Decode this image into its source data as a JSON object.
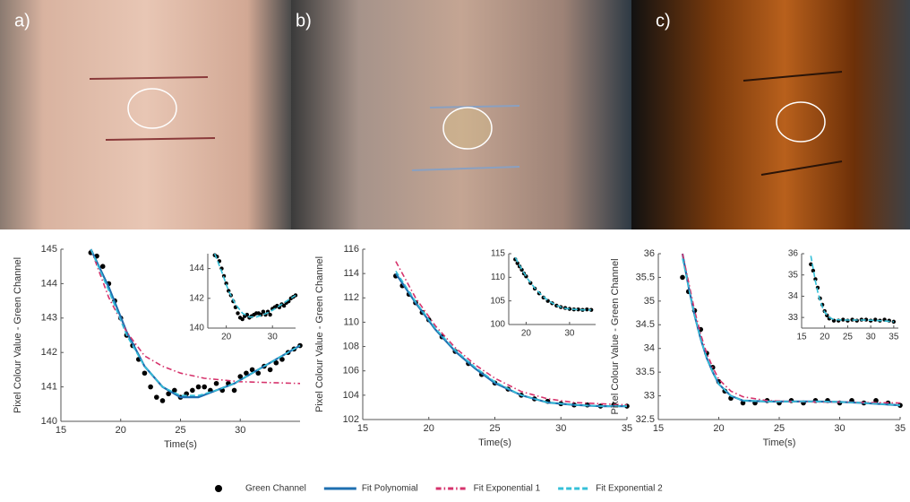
{
  "photos": [
    {
      "label": "a)"
    },
    {
      "label": "b)"
    },
    {
      "label": "c)"
    }
  ],
  "legend": [
    {
      "name": "Green Channel",
      "color": "#000000",
      "style": "markers"
    },
    {
      "name": "Fit Polynomial",
      "color": "#1f6fb0",
      "style": "solid"
    },
    {
      "name": "Fit Exponential 1",
      "color": "#d6336c",
      "style": "dashdot"
    },
    {
      "name": "Fit Exponential 2",
      "color": "#35c0d8",
      "style": "dashed"
    }
  ],
  "chart_data": [
    {
      "type": "scatter",
      "x_label": "Time(s)",
      "y_label": "Pixel Colour Value - Green Channel",
      "xlim": [
        15,
        35
      ],
      "ylim": [
        140,
        145
      ],
      "xticks": [
        15,
        20,
        25,
        30
      ],
      "yticks": [
        140,
        141,
        142,
        143,
        144,
        145
      ],
      "inset": {
        "xlim": [
          16,
          35
        ],
        "ylim": [
          140,
          145
        ],
        "xticks": [
          20,
          30
        ],
        "yticks": [
          140,
          142,
          144
        ]
      },
      "series": [
        {
          "color": "#000000",
          "style": "markers",
          "in_inset": true,
          "x": [
            17.5,
            18,
            18.5,
            19,
            19.5,
            20,
            20.5,
            21,
            21.5,
            22,
            22.5,
            23,
            23.5,
            24,
            24.5,
            25,
            25.5,
            26,
            26.5,
            27,
            27.5,
            28,
            28.5,
            29,
            29.5,
            30,
            30.5,
            31,
            31.5,
            32,
            32.5,
            33,
            33.5,
            34,
            34.5,
            35
          ],
          "values": [
            144.9,
            144.8,
            144.5,
            144,
            143.5,
            143,
            142.5,
            142.2,
            141.8,
            141.4,
            141,
            140.7,
            140.6,
            140.8,
            140.9,
            140.7,
            140.8,
            140.9,
            141,
            141,
            140.9,
            141.1,
            140.9,
            141.1,
            140.9,
            141.3,
            141.4,
            141.5,
            141.4,
            141.6,
            141.5,
            141.7,
            141.8,
            142,
            142.1,
            142.2
          ]
        },
        {
          "color": "#1f6fb0",
          "style": "solid",
          "in_inset": false,
          "x": [
            17.5,
            19,
            20.5,
            22,
            23.5,
            25,
            26.5,
            28,
            29.5,
            31,
            32.5,
            34,
            35
          ],
          "values": [
            145,
            143.9,
            142.6,
            141.6,
            141,
            140.7,
            140.7,
            140.9,
            141.1,
            141.4,
            141.7,
            142,
            142.2
          ]
        },
        {
          "color": "#d6336c",
          "style": "dashdot",
          "in_inset": false,
          "x": [
            17.5,
            19,
            20.5,
            22,
            23.5,
            25,
            27,
            30,
            35
          ],
          "values": [
            145,
            143.6,
            142.6,
            141.9,
            141.6,
            141.4,
            141.25,
            141.15,
            141.1
          ]
        },
        {
          "color": "#35c0d8",
          "style": "dashed",
          "in_inset": true,
          "x": [
            17.5,
            19,
            20.5,
            22,
            23.5,
            25,
            26.5,
            28,
            29.5,
            31,
            32.5,
            34,
            35
          ],
          "values": [
            145,
            143.8,
            142.5,
            141.6,
            141,
            140.75,
            140.75,
            140.9,
            141.1,
            141.4,
            141.7,
            142,
            142.2
          ]
        }
      ]
    },
    {
      "type": "scatter",
      "x_label": "Time(s)",
      "y_label": "Pixel Colour Value - Green Channel",
      "xlim": [
        15,
        35
      ],
      "ylim": [
        102,
        116
      ],
      "xticks": [
        15,
        20,
        25,
        30,
        35
      ],
      "yticks": [
        102,
        104,
        106,
        108,
        110,
        112,
        114,
        116
      ],
      "inset": {
        "xlim": [
          16,
          36
        ],
        "ylim": [
          100,
          115
        ],
        "xticks": [
          20,
          30
        ],
        "yticks": [
          100,
          105,
          110,
          115
        ]
      },
      "series": [
        {
          "color": "#000000",
          "style": "markers",
          "in_inset": true,
          "x": [
            17.5,
            18,
            18.5,
            19,
            19.5,
            20,
            21,
            22,
            23,
            24,
            25,
            26,
            27,
            28,
            29,
            30,
            31,
            32,
            33,
            34,
            35
          ],
          "values": [
            113.8,
            113,
            112.3,
            111.6,
            110.8,
            110.2,
            108.8,
            107.6,
            106.6,
            105.7,
            105,
            104.5,
            104,
            103.7,
            103.5,
            103.3,
            103.2,
            103.2,
            103.1,
            103.2,
            103.1
          ]
        },
        {
          "color": "#1f6fb0",
          "style": "solid",
          "in_inset": false,
          "x": [
            17.5,
            19,
            20.5,
            22,
            23.5,
            25,
            27,
            29,
            31,
            33,
            35
          ],
          "values": [
            114,
            111.6,
            109.4,
            107.6,
            106.2,
            105,
            104,
            103.4,
            103.2,
            103.1,
            103.1
          ]
        },
        {
          "color": "#d6336c",
          "style": "dashdot",
          "in_inset": false,
          "x": [
            17.5,
            19,
            20.5,
            22,
            23.5,
            25,
            27,
            29,
            31,
            33,
            35
          ],
          "values": [
            115,
            112,
            109.7,
            107.9,
            106.5,
            105.4,
            104.3,
            103.7,
            103.4,
            103.3,
            103.2
          ]
        },
        {
          "color": "#35c0d8",
          "style": "dashed",
          "in_inset": true,
          "x": [
            17.5,
            19,
            20.5,
            22,
            23.5,
            25,
            27,
            29,
            31,
            33,
            35
          ],
          "values": [
            114.2,
            111.7,
            109.5,
            107.7,
            106.3,
            105.1,
            104,
            103.4,
            103.2,
            103.1,
            103.1
          ]
        }
      ]
    },
    {
      "type": "scatter",
      "x_label": "Time(s)",
      "y_label": "Pixel Colour Value - Green Channel",
      "xlim": [
        15,
        35
      ],
      "ylim": [
        32.5,
        36
      ],
      "xticks": [
        15,
        20,
        25,
        30,
        35
      ],
      "yticks": [
        32.5,
        33,
        33.5,
        34,
        34.5,
        35,
        35.5,
        36
      ],
      "inset": {
        "xlim": [
          15,
          36
        ],
        "ylim": [
          32.5,
          36
        ],
        "xticks": [
          15,
          20,
          25,
          30,
          35
        ],
        "yticks": [
          33,
          34,
          35,
          36
        ]
      },
      "series": [
        {
          "color": "#000000",
          "style": "markers",
          "in_inset": true,
          "x": [
            17,
            17.5,
            18,
            18.5,
            19,
            19.5,
            20,
            20.5,
            21,
            22,
            23,
            24,
            25,
            26,
            27,
            28,
            29,
            30,
            31,
            32,
            33,
            34,
            35
          ],
          "values": [
            35.5,
            35.2,
            34.8,
            34.4,
            33.9,
            33.6,
            33.3,
            33.1,
            32.95,
            32.85,
            32.85,
            32.9,
            32.85,
            32.9,
            32.85,
            32.9,
            32.9,
            32.85,
            32.9,
            32.85,
            32.9,
            32.85,
            32.8
          ]
        },
        {
          "color": "#1f6fb0",
          "style": "solid",
          "in_inset": false,
          "x": [
            17,
            17.5,
            18,
            18.5,
            19,
            19.5,
            20,
            21,
            22,
            24,
            26,
            28,
            30,
            32,
            35
          ],
          "values": [
            36,
            35.3,
            34.7,
            34.2,
            33.8,
            33.5,
            33.25,
            33,
            32.9,
            32.88,
            32.88,
            32.88,
            32.87,
            32.85,
            32.8
          ]
        },
        {
          "color": "#d6336c",
          "style": "dashdot",
          "in_inset": false,
          "x": [
            17,
            17.5,
            18,
            18.5,
            19,
            19.5,
            20,
            21,
            22,
            24,
            26,
            28,
            30,
            32,
            35
          ],
          "values": [
            36,
            35.4,
            34.8,
            34.3,
            33.9,
            33.6,
            33.35,
            33.1,
            32.98,
            32.9,
            32.88,
            32.87,
            32.87,
            32.86,
            32.85
          ]
        },
        {
          "color": "#35c0d8",
          "style": "dashed",
          "in_inset": true,
          "x": [
            17,
            17.5,
            18,
            18.5,
            19,
            19.5,
            20,
            21,
            22,
            24,
            26,
            28,
            30,
            32,
            35
          ],
          "values": [
            35.9,
            35.3,
            34.7,
            34.2,
            33.8,
            33.5,
            33.25,
            33,
            32.9,
            32.88,
            32.88,
            32.88,
            32.87,
            32.85,
            32.8
          ]
        }
      ]
    }
  ]
}
